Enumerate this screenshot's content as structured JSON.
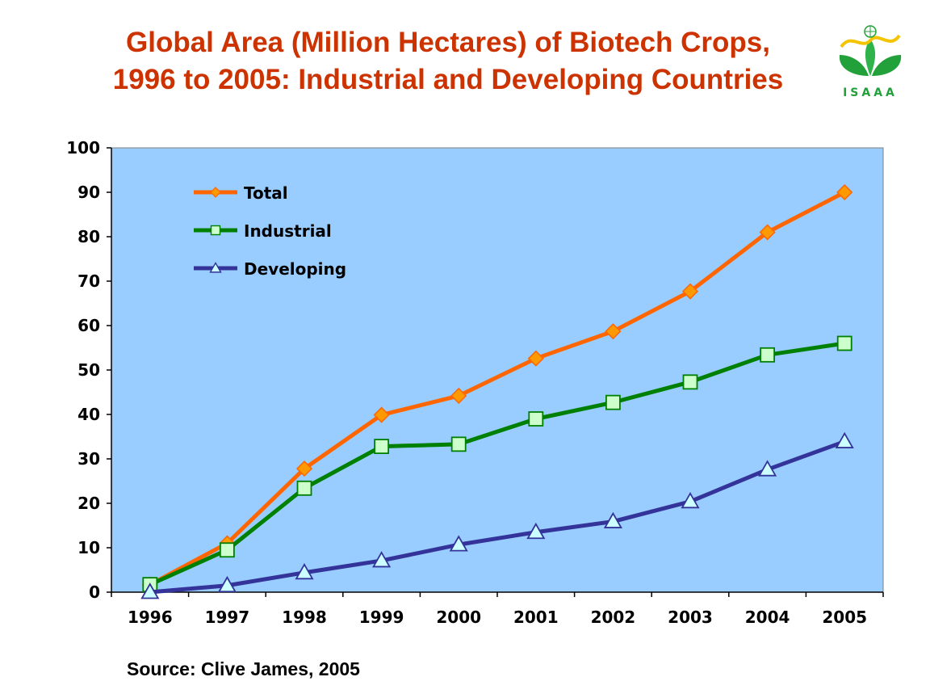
{
  "title": "Global Area (Million Hectares) of Biotech Crops, 1996 to 2005: Industrial and Developing Countries",
  "source": "Source: Clive James, 2005",
  "logo": {
    "text": "ISAAA",
    "icon": "isaaa-leaf-logo",
    "color": "#22a13a",
    "accent": "#f5c400"
  },
  "colors": {
    "plot_background": "#99ccff",
    "title": "#cc3300"
  },
  "chart_data": {
    "type": "line",
    "title": "Global Area (Million Hectares) of Biotech Crops, 1996 to 2005: Industrial and Developing Countries",
    "xlabel": "",
    "ylabel": "",
    "categories": [
      "1996",
      "1997",
      "1998",
      "1999",
      "2000",
      "2001",
      "2002",
      "2003",
      "2004",
      "2005"
    ],
    "ylim": [
      0,
      100
    ],
    "yticks": [
      0,
      10,
      20,
      30,
      40,
      50,
      60,
      70,
      80,
      90,
      100
    ],
    "grid": false,
    "legend": "top-left",
    "series": [
      {
        "name": "Total",
        "color": "#ff6600",
        "marker": "diamond",
        "marker_fill": "#ff9900",
        "values": [
          1.7,
          11.0,
          27.8,
          39.9,
          44.2,
          52.6,
          58.7,
          67.7,
          81.0,
          90.0
        ]
      },
      {
        "name": "Industrial",
        "color": "#008000",
        "marker": "square",
        "marker_fill": "#ccffcc",
        "values": [
          1.7,
          9.5,
          23.4,
          32.8,
          33.3,
          39.0,
          42.7,
          47.3,
          53.4,
          56.0
        ]
      },
      {
        "name": "Developing",
        "color": "#333399",
        "marker": "triangle",
        "marker_fill": "#ccffff",
        "values": [
          0.0,
          1.5,
          4.4,
          7.1,
          10.7,
          13.5,
          15.9,
          20.4,
          27.6,
          33.9
        ]
      }
    ]
  }
}
